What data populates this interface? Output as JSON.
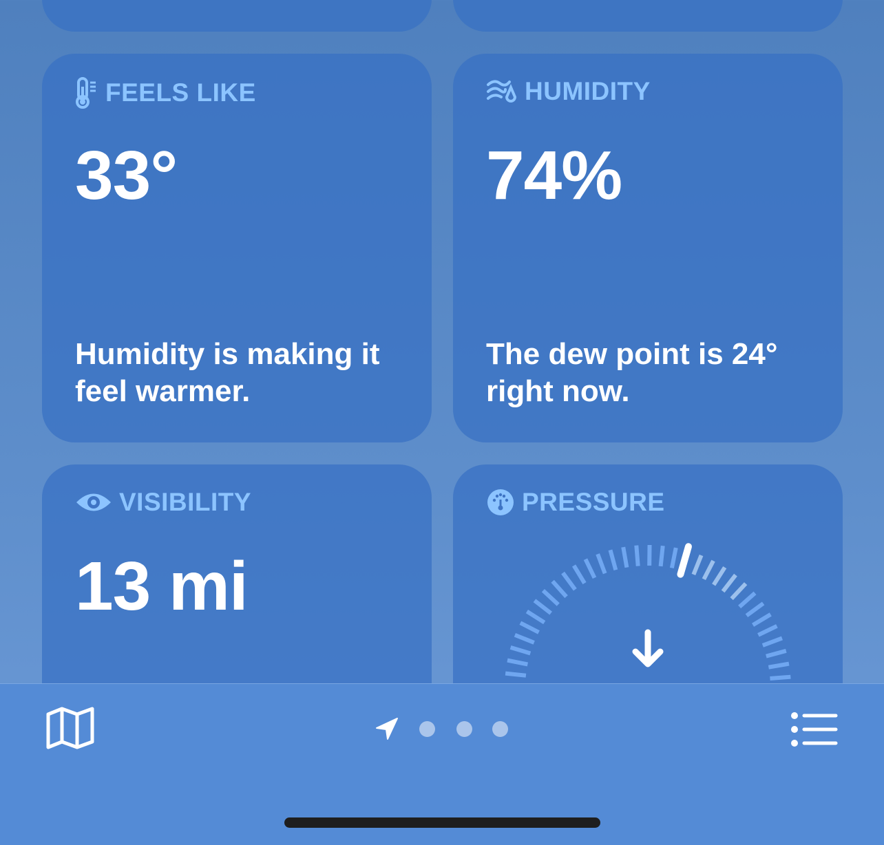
{
  "colors": {
    "label": "#8cc4ff",
    "card": "#3a70c4",
    "tabbar": "#548bd6"
  },
  "cards": {
    "feels_like": {
      "label": "FEELS LIKE",
      "icon": "thermometer-icon",
      "value": "33°",
      "description": "Humidity is making it feel warmer."
    },
    "humidity": {
      "label": "HUMIDITY",
      "icon": "humidity-icon",
      "value": "74%",
      "description": "The dew point is 24° right now."
    },
    "visibility": {
      "label": "VISIBILITY",
      "icon": "eye-icon",
      "value": "13 mi"
    },
    "pressure": {
      "label": "PRESSURE",
      "icon": "gauge-icon",
      "trend": "falling"
    }
  },
  "tabbar": {
    "left_icon": "map-icon",
    "right_icon": "list-icon",
    "page_dots": 3,
    "current_page": "location"
  }
}
